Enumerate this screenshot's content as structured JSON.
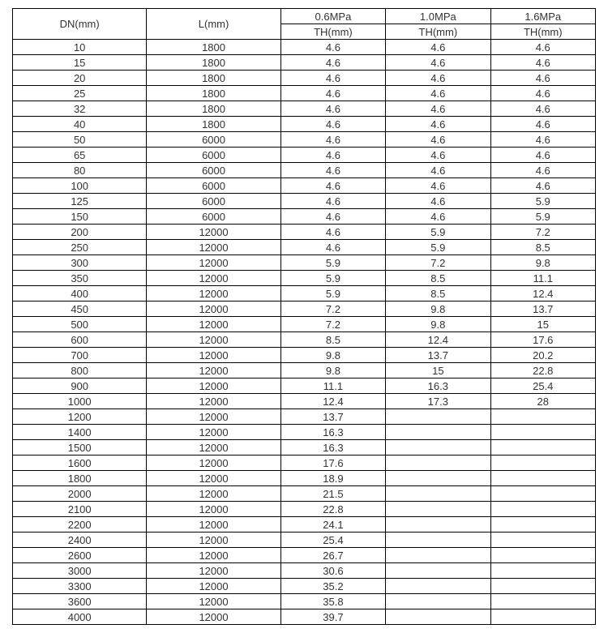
{
  "table": {
    "type": "table",
    "background_color": "#ffffff",
    "border_color": "#000000",
    "font_size": 13,
    "header_top": [
      "DN(mm)",
      "L(mm)",
      "0.6MPa",
      "1.0MPa",
      "1.6MPa"
    ],
    "header_sub": [
      "TH(mm)",
      "TH(mm)",
      "TH(mm)"
    ],
    "rows": [
      [
        "10",
        "1800",
        "4.6",
        "4.6",
        "4.6"
      ],
      [
        "15",
        "1800",
        "4.6",
        "4.6",
        "4.6"
      ],
      [
        "20",
        "1800",
        "4.6",
        "4.6",
        "4.6"
      ],
      [
        "25",
        "1800",
        "4.6",
        "4.6",
        "4.6"
      ],
      [
        "32",
        "1800",
        "4.6",
        "4.6",
        "4.6"
      ],
      [
        "40",
        "1800",
        "4.6",
        "4.6",
        "4.6"
      ],
      [
        "50",
        "6000",
        "4.6",
        "4.6",
        "4.6"
      ],
      [
        "65",
        "6000",
        "4.6",
        "4.6",
        "4.6"
      ],
      [
        "80",
        "6000",
        "4.6",
        "4.6",
        "4.6"
      ],
      [
        "100",
        "6000",
        "4.6",
        "4.6",
        "4.6"
      ],
      [
        "125",
        "6000",
        "4.6",
        "4.6",
        "5.9"
      ],
      [
        "150",
        "6000",
        "4.6",
        "4.6",
        "5.9"
      ],
      [
        "200",
        "12000",
        "4.6",
        "5.9",
        "7.2"
      ],
      [
        "250",
        "12000",
        "4.6",
        "5.9",
        "8.5"
      ],
      [
        "300",
        "12000",
        "5.9",
        "7.2",
        "9.8"
      ],
      [
        "350",
        "12000",
        "5.9",
        "8.5",
        "11.1"
      ],
      [
        "400",
        "12000",
        "5.9",
        "8.5",
        "12.4"
      ],
      [
        "450",
        "12000",
        "7.2",
        "9.8",
        "13.7"
      ],
      [
        "500",
        "12000",
        "7.2",
        "9.8",
        "15"
      ],
      [
        "600",
        "12000",
        "8.5",
        "12.4",
        "17.6"
      ],
      [
        "700",
        "12000",
        "9.8",
        "13.7",
        "20.2"
      ],
      [
        "800",
        "12000",
        "9.8",
        "15",
        "22.8"
      ],
      [
        "900",
        "12000",
        "11.1",
        "16.3",
        "25.4"
      ],
      [
        "1000",
        "12000",
        "12.4",
        "17.3",
        "28"
      ],
      [
        "1200",
        "12000",
        "13.7",
        "",
        ""
      ],
      [
        "1400",
        "12000",
        "16.3",
        "",
        ""
      ],
      [
        "1500",
        "12000",
        "16.3",
        "",
        ""
      ],
      [
        "1600",
        "12000",
        "17.6",
        "",
        ""
      ],
      [
        "1800",
        "12000",
        "18.9",
        "",
        ""
      ],
      [
        "2000",
        "12000",
        "21.5",
        "",
        ""
      ],
      [
        "2100",
        "12000",
        "22.8",
        "",
        ""
      ],
      [
        "2200",
        "12000",
        "24.1",
        "",
        ""
      ],
      [
        "2400",
        "12000",
        "25.4",
        "",
        ""
      ],
      [
        "2600",
        "12000",
        "26.7",
        "",
        ""
      ],
      [
        "3000",
        "12000",
        "30.6",
        "",
        ""
      ],
      [
        "3300",
        "12000",
        "35.2",
        "",
        ""
      ],
      [
        "3600",
        "12000",
        "35.8",
        "",
        ""
      ],
      [
        "4000",
        "12000",
        "39.7",
        "",
        ""
      ]
    ]
  }
}
